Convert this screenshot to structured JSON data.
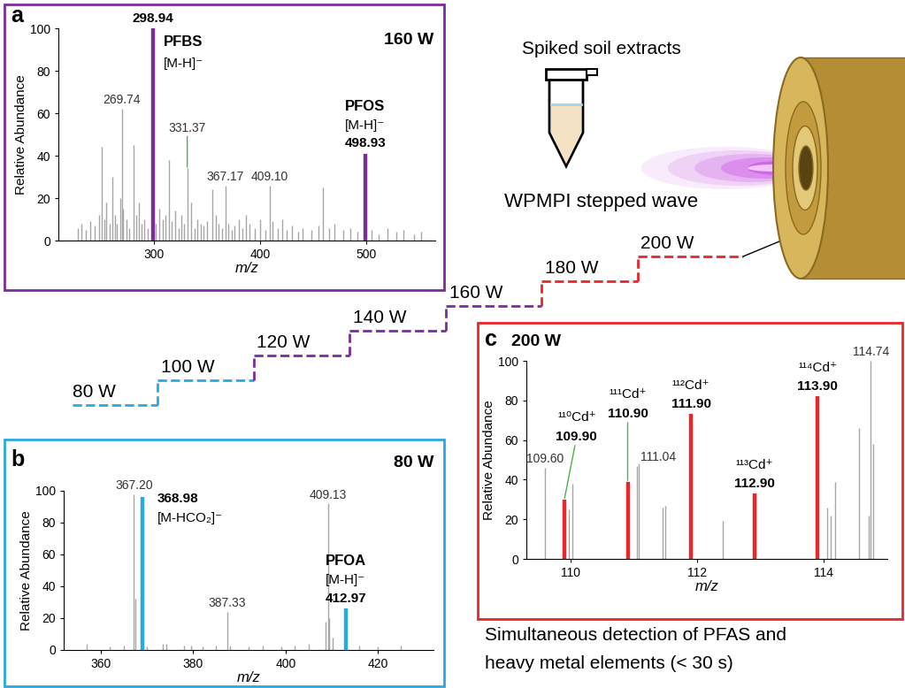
{
  "chart_data": [
    {
      "type": "spectrum",
      "panel": "a",
      "power": "160 W",
      "xlabel": "m/z",
      "ylabel": "Relative Abundance",
      "xlim": [
        210,
        565
      ],
      "xticks": [
        300,
        400,
        500
      ],
      "ylim": [
        0,
        100
      ],
      "yticks": [
        0,
        20,
        40,
        60,
        80,
        100
      ],
      "series": [
        {
          "color": "#a6a6a6",
          "x": [
            228,
            232,
            236,
            240,
            244,
            248,
            250.9,
            253,
            255,
            258,
            260.9,
            263,
            265,
            268,
            269.74,
            271,
            274,
            277,
            280.9,
            283,
            286,
            288,
            291,
            294,
            302,
            305,
            308,
            311,
            313.9,
            317,
            320,
            323,
            326,
            328,
            331.37,
            335,
            338,
            341,
            344,
            347,
            350,
            355,
            358,
            361,
            364,
            367.17,
            370,
            373,
            376,
            380,
            383,
            387,
            390,
            395,
            400,
            405,
            409.1,
            412,
            417,
            421,
            425,
            430,
            436,
            440,
            448,
            455,
            459,
            465,
            470,
            478,
            485,
            492,
            505,
            512,
            520,
            528,
            535,
            545,
            552
          ],
          "values": [
            6,
            8,
            5,
            9,
            7,
            12,
            44,
            10,
            18,
            8,
            30,
            12,
            8,
            20,
            62,
            15,
            10,
            6,
            45,
            12,
            18,
            8,
            10,
            6,
            8,
            15,
            10,
            12,
            38,
            9,
            14,
            6,
            12,
            8,
            34,
            18,
            6,
            10,
            8,
            7,
            9,
            24,
            12,
            8,
            6,
            26,
            8,
            5,
            7,
            10,
            6,
            12,
            8,
            6,
            10,
            5,
            26,
            9,
            6,
            10,
            5,
            7,
            4,
            6,
            5,
            7,
            25,
            6,
            8,
            5,
            6,
            4,
            5,
            3,
            6,
            4,
            5,
            3,
            4
          ],
          "peak_labels": [
            {
              "x": 269.74,
              "label": "269.74"
            },
            {
              "x": 331.37,
              "label": "331.37"
            },
            {
              "x": 367.17,
              "label": "367.17"
            },
            {
              "x": 409.1,
              "label": "409.10"
            }
          ]
        },
        {
          "color": "#7b2c9e",
          "x": [
            298.94,
            498.93
          ],
          "values": [
            100,
            41
          ],
          "labels": [
            "298.94",
            "498.93"
          ],
          "compounds": [
            "PFBS",
            "PFOS"
          ],
          "ions": [
            "[M-H]⁻",
            "[M-H]⁻"
          ]
        }
      ]
    },
    {
      "type": "spectrum",
      "panel": "b",
      "power": "80 W",
      "xlabel": "m/z",
      "ylabel": "Relative Abundance",
      "xlim": [
        352,
        432
      ],
      "xticks": [
        360,
        380,
        400,
        420
      ],
      "ylim": [
        0,
        100
      ],
      "yticks": [
        0,
        20,
        40,
        60,
        80,
        100
      ],
      "series": [
        {
          "color": "#a6a6a6",
          "x": [
            357,
            362,
            365,
            367.2,
            367.5,
            370,
            373.5,
            374.2,
            378,
            379.5,
            382,
            385,
            387.33,
            388,
            392,
            395,
            399,
            402,
            405,
            408.6,
            409.13,
            409.5,
            410.2,
            416,
            420,
            425
          ],
          "values": [
            4,
            2,
            3,
            98,
            32,
            2,
            4,
            4,
            3,
            3,
            2,
            3,
            24,
            3,
            2,
            3,
            2,
            3,
            4,
            18,
            92,
            20,
            8,
            3,
            2,
            3
          ],
          "peak_labels": [
            {
              "x": 367.2,
              "label": "367.20"
            },
            {
              "x": 387.33,
              "label": "387.33"
            },
            {
              "x": 409.13,
              "label": "409.13"
            }
          ]
        },
        {
          "color": "#29a9e1",
          "x": [
            368.98,
            412.97
          ],
          "values": [
            96,
            26
          ],
          "labels": [
            "368.98",
            "412.97"
          ],
          "compounds": [
            null,
            "PFOA"
          ],
          "ions": [
            "[M-HCO₂]⁻",
            "[M-H]⁻"
          ]
        }
      ]
    },
    {
      "type": "spectrum",
      "panel": "c",
      "power": "200 W",
      "xlabel": "m/z",
      "ylabel": "Relative Abundance",
      "xlim": [
        109.3,
        115.0
      ],
      "xticks": [
        110,
        112,
        114
      ],
      "ylim": [
        0,
        100
      ],
      "yticks": [
        0,
        20,
        40,
        60,
        80,
        100
      ],
      "series": [
        {
          "color": "#a6a6a6",
          "x": [
            109.6,
            109.97,
            110.03,
            111.04,
            111.08,
            111.45,
            111.5,
            112.4,
            114.05,
            114.1,
            114.18,
            114.55,
            114.7,
            114.74,
            114.78
          ],
          "values": [
            46,
            25,
            38,
            47,
            48,
            26,
            27,
            19,
            26,
            22,
            39,
            66,
            22,
            100,
            58
          ],
          "peak_labels": [
            {
              "x": 109.6,
              "label": "109.60"
            },
            {
              "x": 111.04,
              "label": "111.04"
            },
            {
              "x": 114.74,
              "label": "114.74"
            }
          ]
        },
        {
          "color": "#e8262b",
          "x": [
            109.9,
            110.9,
            111.9,
            112.9,
            113.9
          ],
          "values": [
            30,
            39,
            73,
            33,
            82
          ],
          "labels": [
            "109.90",
            "110.90",
            "111.90",
            "112.90",
            "113.90"
          ],
          "ions": [
            "¹¹⁰Cd⁺",
            "¹¹¹Cd⁺",
            "¹¹²Cd⁺",
            "¹¹³Cd⁺",
            "¹¹⁴Cd⁺"
          ]
        }
      ]
    }
  ],
  "diagram": {
    "sample": "Spiked soil extracts",
    "method": "WPMPI stepped wave",
    "steps": [
      {
        "label": "80 W",
        "color": "#29a9e1"
      },
      {
        "label": "100 W",
        "color": "#29a9e1"
      },
      {
        "label": "120 W",
        "color": "#7b2c9e"
      },
      {
        "label": "140 W",
        "color": "#7b2c9e"
      },
      {
        "label": "160 W",
        "color": "#7b2c9e"
      },
      {
        "label": "180 W",
        "color": "#e8262b"
      },
      {
        "label": "200 W",
        "color": "#e8262b"
      }
    ],
    "caption": [
      "Simultaneous detection of PFAS and",
      "heavy metal elements (< 30 s)"
    ]
  }
}
